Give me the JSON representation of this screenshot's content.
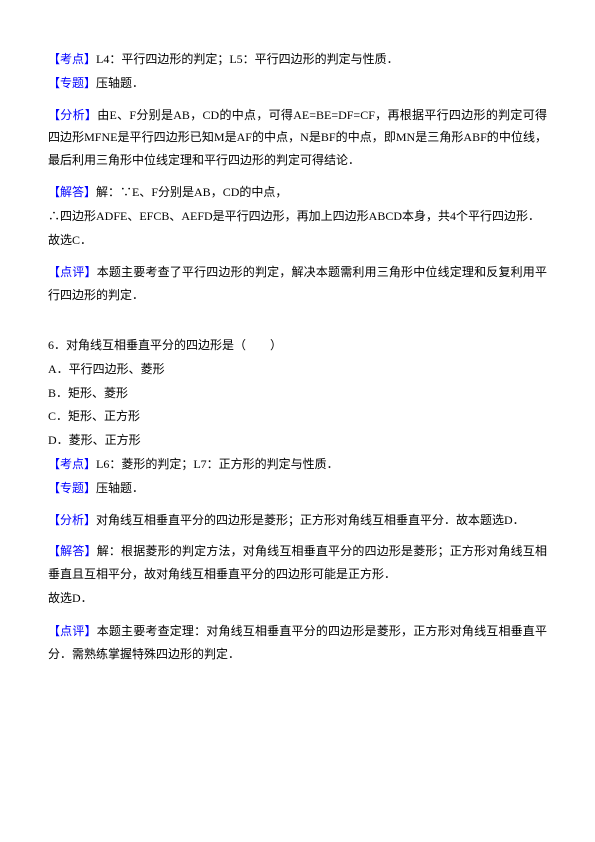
{
  "q1": {
    "kaodian": {
      "label": "【考点】",
      "text": "L4：平行四边形的判定；L5：平行四边形的判定与性质．"
    },
    "zhuanti": {
      "label": "【专题】",
      "text": "压轴题．"
    },
    "fenxi": {
      "label": "【分析】",
      "p1": "由E、F分别是AB，CD的中点，可得AE=BE=DF=CF，再根据平行四边形的判定可得四边形MFNE是平行四边形已知M是AF的中点，N是BF的中点，即MN是三角形ABF的中位线，最后利用三角形中位线定理和平行四边形的判定可得结论．"
    },
    "jieda": {
      "label": "【解答】",
      "p1": "解：∵E、F分别是AB，CD的中点，",
      "p2": "∴四边形ADFE、EFCB、AEFD是平行四边形，再加上四边形ABCD本身，共4个平行四边形．",
      "p3": "故选C．"
    },
    "dianping": {
      "label": "【点评】",
      "p1": "本题主要考查了平行四边形的判定，解决本题需利用三角形中位线定理和反复利用平行四边形的判定．"
    }
  },
  "q2": {
    "num": "6．",
    "stem": "对角线互相垂直平分的四边形是（　　）",
    "optA": "A．平行四边形、菱形",
    "optB": "B．矩形、菱形",
    "optC": "C．矩形、正方形",
    "optD": "D．菱形、正方形",
    "kaodian": {
      "label": "【考点】",
      "text": "L6：菱形的判定；L7：正方形的判定与性质．"
    },
    "zhuanti": {
      "label": "【专题】",
      "text": "压轴题．"
    },
    "fenxi": {
      "label": "【分析】",
      "p1": "对角线互相垂直平分的四边形是菱形；正方形对角线互相垂直平分．故本题选D．"
    },
    "jieda": {
      "label": "【解答】",
      "p1": "解：根据菱形的判定方法，对角线互相垂直平分的四边形是菱形；正方形对角线互相垂直且互相平分，故对角线互相垂直平分的四边形可能是正方形．",
      "p2": "故选D．"
    },
    "dianping": {
      "label": "【点评】",
      "p1": "本题主要考查定理：对角线互相垂直平分的四边形是菱形，正方形对角线互相垂直平分．需熟练掌握特殊四边形的判定．"
    }
  },
  "colors": {
    "label_color": "#0000ff",
    "text_color": "#000000",
    "background": "#ffffff"
  }
}
